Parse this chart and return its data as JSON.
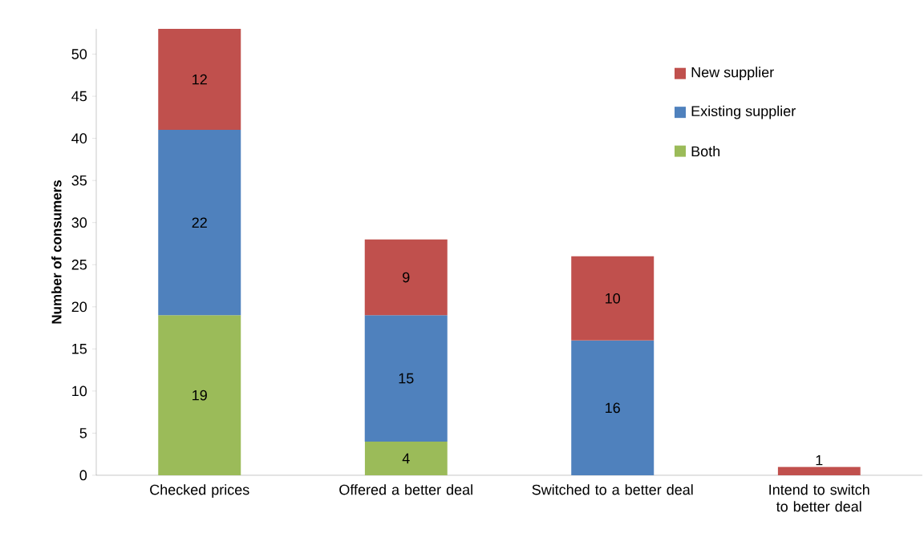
{
  "chart_data": {
    "type": "bar",
    "stacked": true,
    "ylabel": "Number of consumers",
    "categories": [
      "Checked prices",
      "Offered a better deal",
      "Switched to  a better deal",
      "Intend to  switch to better deal"
    ],
    "series": [
      {
        "name": "Both",
        "color": "#9bbb59",
        "values": [
          19,
          4,
          null,
          null
        ]
      },
      {
        "name": "Existing supplier",
        "color": "#4f81bd",
        "values": [
          22,
          15,
          16,
          null
        ]
      },
      {
        "name": "New supplier",
        "color": "#c0504d",
        "values": [
          12,
          9,
          10,
          1
        ]
      }
    ],
    "ylim": [
      0,
      53
    ],
    "yticks": [
      0,
      5,
      10,
      15,
      20,
      25,
      30,
      35,
      40,
      45,
      50
    ],
    "data_labels": true,
    "legend": "top right",
    "grid": false
  }
}
